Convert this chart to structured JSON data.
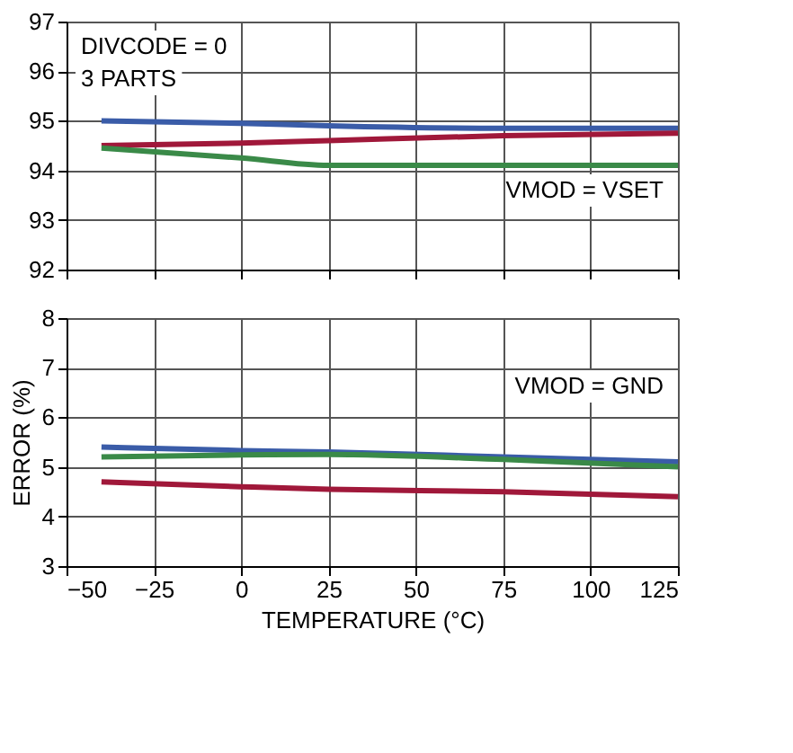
{
  "chart_data": [
    {
      "type": "line",
      "x": [
        -40,
        0,
        25,
        75,
        125
      ],
      "xlim": [
        -50,
        125
      ],
      "xticks": [
        -50,
        -25,
        0,
        25,
        50,
        75,
        100,
        125
      ],
      "ylim": [
        92,
        97
      ],
      "yticks": [
        92,
        93,
        94,
        95,
        96,
        97
      ],
      "grid": true,
      "tick_labels": "y",
      "annotations": [
        "DIVCODE = 0",
        "3 PARTS",
        "VMOD = VSET"
      ],
      "series": [
        {
          "color": "#3a5ca8",
          "values": [
            95.0,
            94.95,
            94.9,
            94.85,
            94.85
          ]
        },
        {
          "color": "#a0183a",
          "values": [
            94.5,
            94.55,
            94.6,
            94.7,
            94.75
          ]
        },
        {
          "color": "#3a8a48",
          "values": [
            94.45,
            94.25,
            94.1,
            94.1,
            94.1
          ]
        }
      ]
    },
    {
      "type": "line",
      "x": [
        -40,
        0,
        25,
        75,
        125
      ],
      "xlim": [
        -50,
        125
      ],
      "xticks": [
        -50,
        -25,
        0,
        25,
        50,
        75,
        100,
        125
      ],
      "ylim": [
        3,
        8
      ],
      "yticks": [
        3,
        4,
        5,
        6,
        7,
        8
      ],
      "grid": true,
      "xlabel": "TEMPERATURE (°C)",
      "ylabel": "ERROR (%)",
      "annotations": [
        "VMOD = GND"
      ],
      "series": [
        {
          "color": "#3a5ca8",
          "values": [
            5.4,
            5.33,
            5.3,
            5.2,
            5.1
          ]
        },
        {
          "color": "#3a8a48",
          "values": [
            5.2,
            5.24,
            5.25,
            5.15,
            5.0
          ]
        },
        {
          "color": "#a0183a",
          "values": [
            4.7,
            4.6,
            4.55,
            4.5,
            4.4
          ]
        }
      ]
    }
  ]
}
